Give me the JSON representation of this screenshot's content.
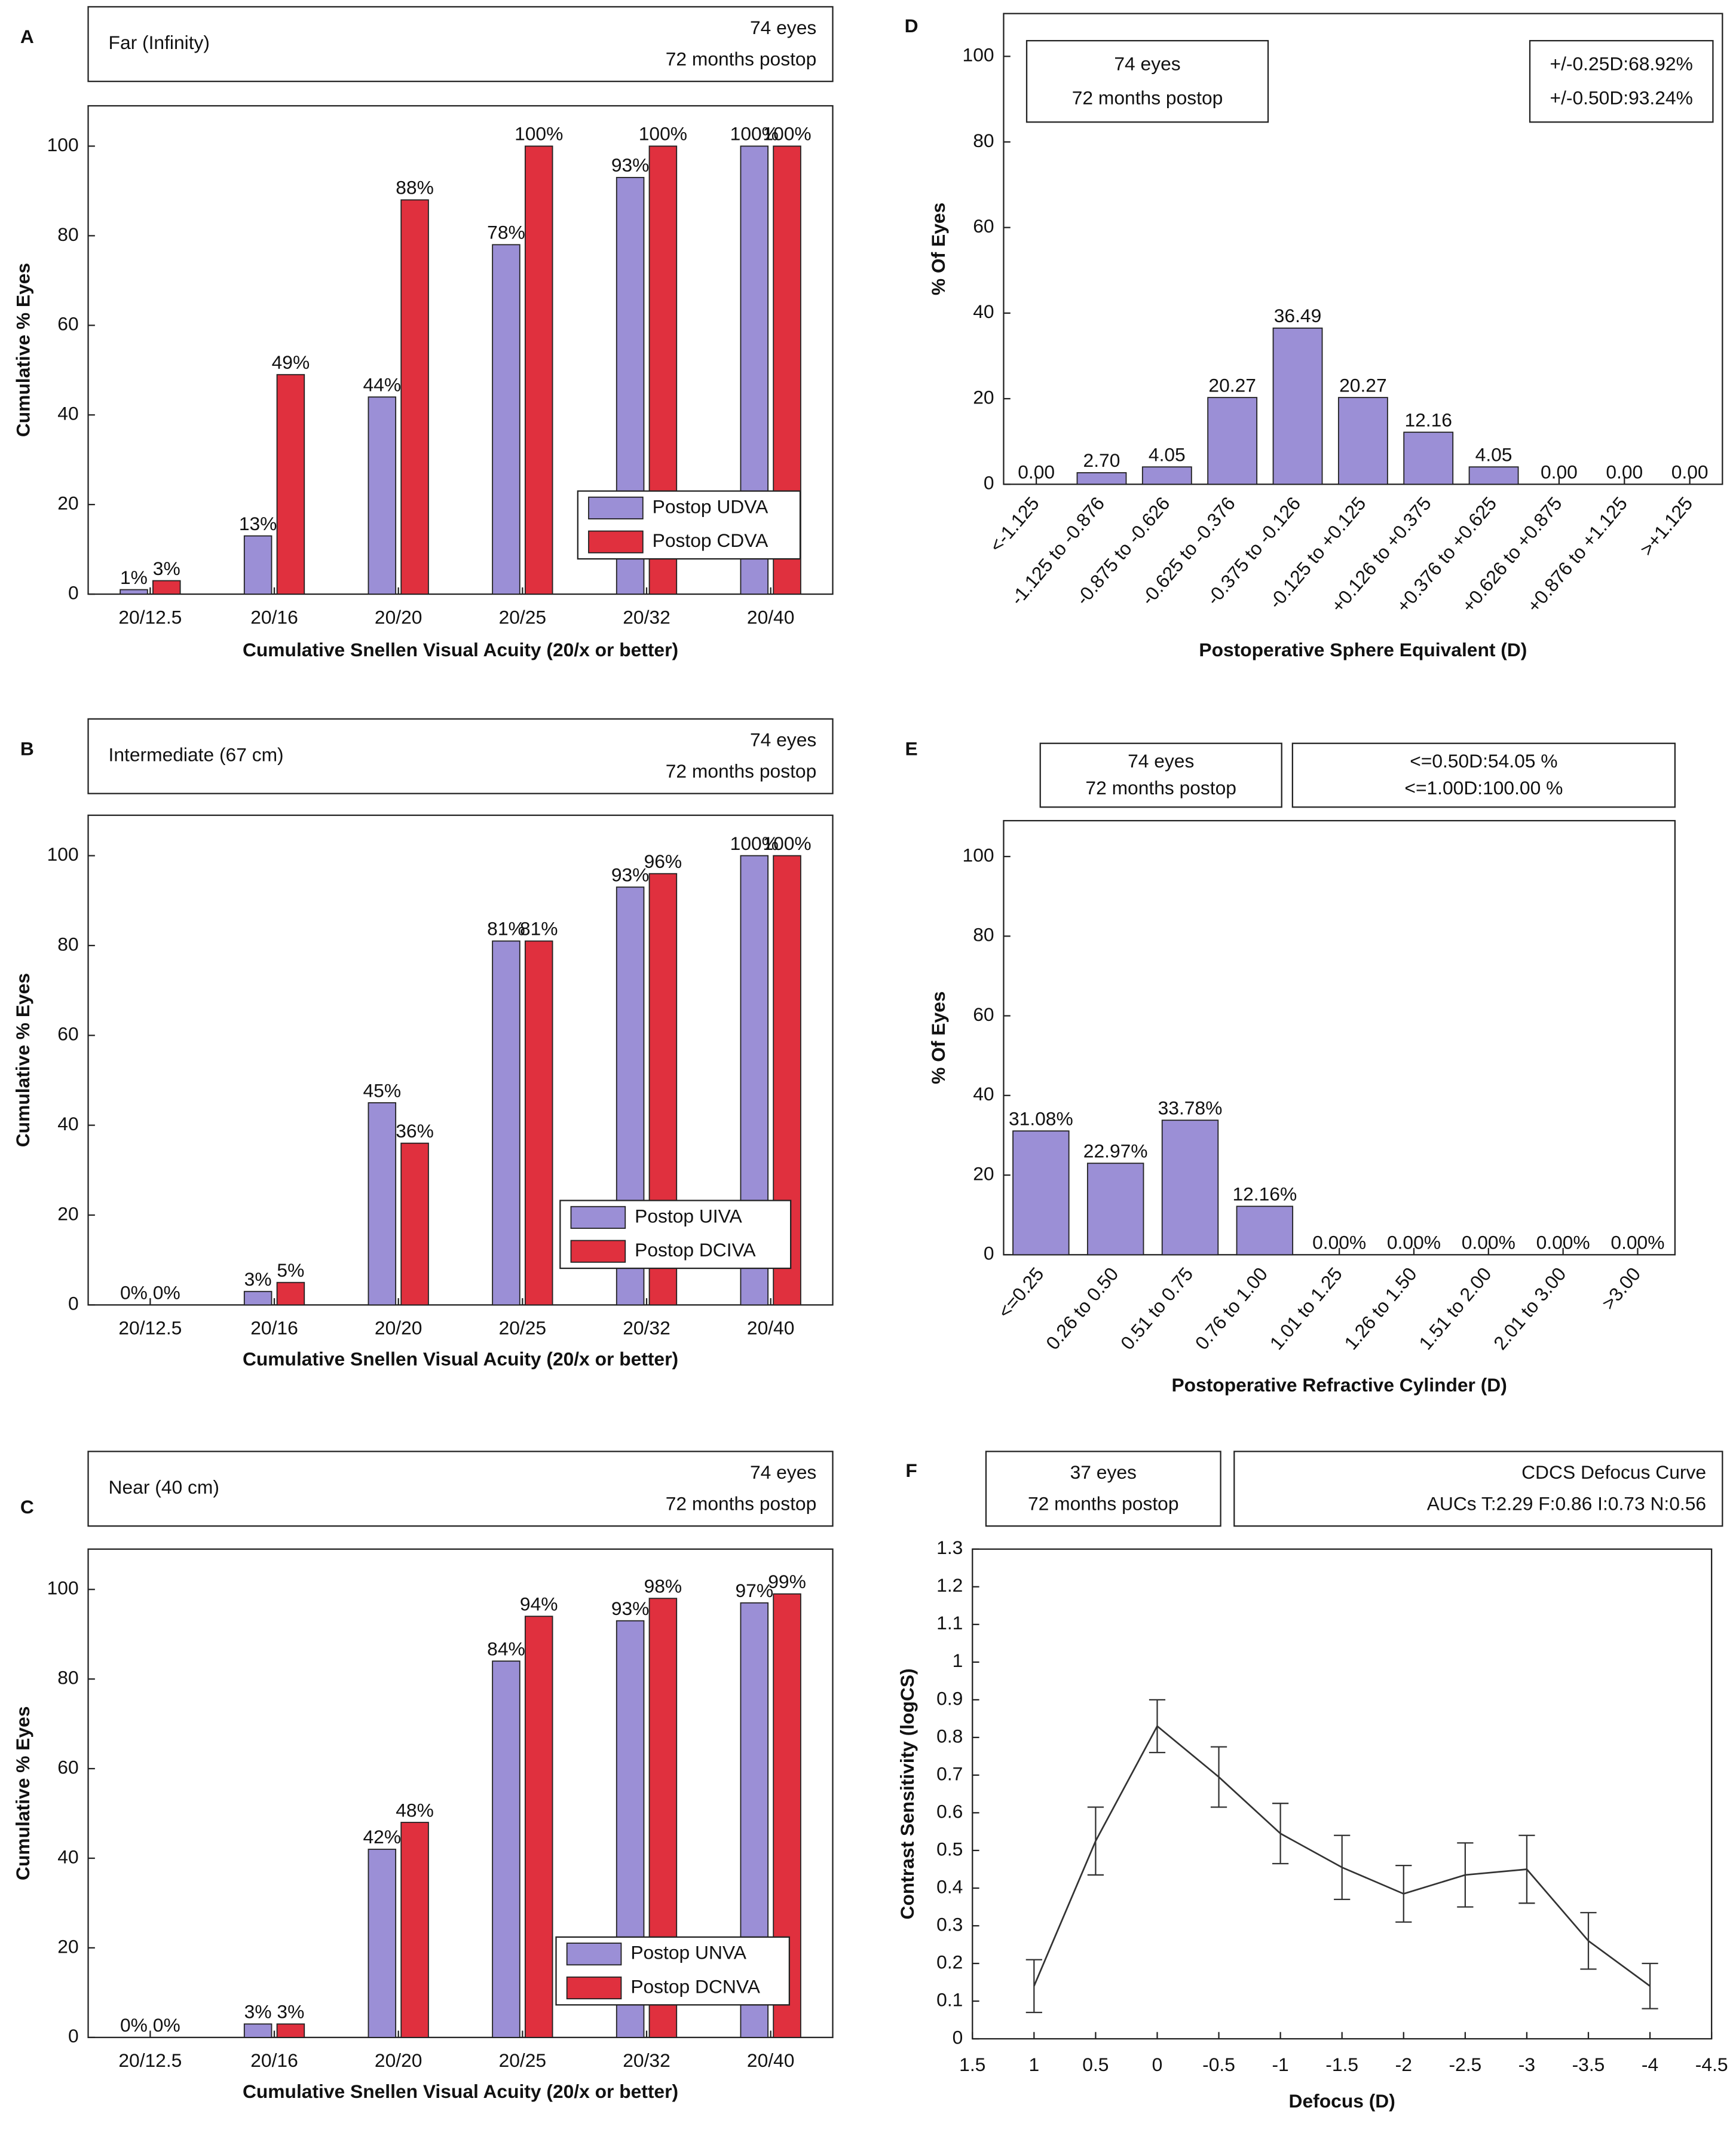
{
  "chart_data": [
    {
      "type": "bar",
      "panel": "A",
      "boxes": [
        {
          "note": "Far (Infinity)",
          "lines": [
            "74 eyes",
            "72 months postop"
          ]
        }
      ],
      "categories": [
        "20/12.5",
        "20/16",
        "20/20",
        "20/25",
        "20/32",
        "20/40"
      ],
      "series": [
        {
          "name": "Postop UDVA",
          "color": "#9b8fd6",
          "values": [
            1,
            13,
            44,
            78,
            93,
            100
          ],
          "value_labels": [
            "1%",
            "13%",
            "44%",
            "78%",
            "93%",
            "100%"
          ]
        },
        {
          "name": "Postop CDVA",
          "color": "#e0303e",
          "values": [
            3,
            49,
            88,
            100,
            100,
            100
          ],
          "value_labels": [
            "3%",
            "49%",
            "88%",
            "100%",
            "100%",
            "100%"
          ]
        }
      ],
      "ylim": [
        0,
        109
      ],
      "yticks": [
        0,
        20,
        40,
        60,
        80,
        100
      ],
      "x_label": "Cumulative Snellen Visual Acuity (20/x or better)",
      "y_label": "Cumulative % Eyes",
      "legend": "lower right"
    },
    {
      "type": "bar",
      "panel": "B",
      "boxes": [
        {
          "note": "Intermediate (67 cm)",
          "lines": [
            "74 eyes",
            "72 months postop"
          ]
        }
      ],
      "categories": [
        "20/12.5",
        "20/16",
        "20/20",
        "20/25",
        "20/32",
        "20/40"
      ],
      "series": [
        {
          "name": "Postop UIVA",
          "color": "#9b8fd6",
          "values": [
            0,
            3,
            45,
            81,
            93,
            100
          ],
          "value_labels": [
            "0%",
            "3%",
            "45%",
            "81%",
            "93%",
            "100%"
          ]
        },
        {
          "name": "Postop DCIVA",
          "color": "#e0303e",
          "values": [
            0,
            5,
            36,
            81,
            96,
            100
          ],
          "value_labels": [
            "0%",
            "5%",
            "36%",
            "81%",
            "96%",
            "100%"
          ]
        }
      ],
      "ylim": [
        0,
        109
      ],
      "yticks": [
        0,
        20,
        40,
        60,
        80,
        100
      ],
      "x_label": "Cumulative Snellen Visual Acuity (20/x or better)",
      "y_label": "Cumulative % Eyes",
      "legend": "lower right"
    },
    {
      "type": "bar",
      "panel": "C",
      "boxes": [
        {
          "note": "Near (40 cm)",
          "lines": [
            "74 eyes",
            "72 months postop"
          ]
        }
      ],
      "categories": [
        "20/12.5",
        "20/16",
        "20/20",
        "20/25",
        "20/32",
        "20/40"
      ],
      "series": [
        {
          "name": "Postop UNVA",
          "color": "#9b8fd6",
          "values": [
            0,
            3,
            42,
            84,
            93,
            97
          ],
          "value_labels": [
            "0%",
            "3%",
            "42%",
            "84%",
            "93%",
            "97%"
          ]
        },
        {
          "name": "Postop DCNVA",
          "color": "#e0303e",
          "values": [
            0,
            3,
            48,
            94,
            98,
            99
          ],
          "value_labels": [
            "0%",
            "3%",
            "48%",
            "94%",
            "98%",
            "99%"
          ]
        }
      ],
      "ylim": [
        0,
        109
      ],
      "yticks": [
        0,
        20,
        40,
        60,
        80,
        100
      ],
      "x_label": "Cumulative Snellen Visual Acuity (20/x or better)",
      "y_label": "Cumulative % Eyes",
      "legend": "lower right"
    },
    {
      "type": "bar",
      "panel": "D",
      "boxes": [
        {
          "lines": [
            "74 eyes",
            "72 months postop"
          ]
        },
        {
          "lines": [
            "+/-0.25D:68.92%",
            "+/-0.50D:93.24%"
          ]
        }
      ],
      "categories": [
        "<-1.125",
        "-1.125 to -0.876",
        "-0.875 to -0.626",
        "-0.625 to -0.376",
        "-0.375 to -0.126",
        "-0.125 to +0.125",
        "+0.126 to +0.375",
        "+0.376 to +0.625",
        "+0.626 to +0.875",
        "+0.876 to +1.125",
        ">+1.125"
      ],
      "series": [
        {
          "color": "#9b8fd6",
          "values": [
            0,
            2.7,
            4.05,
            20.27,
            36.49,
            20.27,
            12.16,
            4.05,
            0,
            0,
            0
          ],
          "value_labels": [
            "0.00",
            "2.70",
            "4.05",
            "20.27",
            "36.49",
            "20.27",
            "12.16",
            "4.05",
            "0.00",
            "0.00",
            "0.00"
          ]
        }
      ],
      "ylim": [
        0,
        110
      ],
      "yticks": [
        0,
        20,
        40,
        60,
        80,
        100
      ],
      "x_label": "Postoperative Sphere Equivalent (D)",
      "y_label": "% Of Eyes"
    },
    {
      "type": "bar",
      "panel": "E",
      "boxes": [
        {
          "lines": [
            "74 eyes",
            "72 months postop"
          ]
        },
        {
          "lines": [
            "<=0.50D:54.05 %",
            "<=1.00D:100.00 %"
          ]
        }
      ],
      "categories": [
        "<=0.25",
        "0.26 to 0.50",
        "0.51 to 0.75",
        "0.76 to 1.00",
        "1.01 to 1.25",
        "1.26 to 1.50",
        "1.51 to 2.00",
        "2.01 to 3.00",
        ">3.00"
      ],
      "series": [
        {
          "color": "#9b8fd6",
          "values": [
            31.08,
            22.97,
            33.78,
            12.16,
            0,
            0,
            0,
            0,
            0
          ],
          "value_labels": [
            "31.08%",
            "22.97%",
            "33.78%",
            "12.16%",
            "0.00%",
            "0.00%",
            "0.00%",
            "0.00%",
            "0.00%"
          ]
        }
      ],
      "ylim": [
        0,
        109
      ],
      "yticks": [
        0,
        20,
        40,
        60,
        80,
        100
      ],
      "x_label": "Postoperative Refractive Cylinder (D)",
      "y_label": "% Of Eyes"
    },
    {
      "type": "line",
      "panel": "F",
      "boxes": [
        {
          "lines": [
            "37 eyes",
            "72 months postop"
          ]
        },
        {
          "lines": [
            "CDCS Defocus Curve",
            "AUCs T:2.29 F:0.86 I:0.73 N:0.56"
          ]
        }
      ],
      "x": [
        1,
        0.5,
        0,
        -0.5,
        -1,
        -1.5,
        -2,
        -2.5,
        -3,
        -3.5,
        -4
      ],
      "values": [
        0.14,
        0.525,
        0.83,
        0.695,
        0.545,
        0.455,
        0.385,
        0.435,
        0.45,
        0.26,
        0.14
      ],
      "errors": [
        0.07,
        0.09,
        0.07,
        0.08,
        0.08,
        0.085,
        0.075,
        0.085,
        0.09,
        0.075,
        0.06
      ],
      "color": "#333333",
      "xlim": [
        1.5,
        -4.5
      ],
      "xticks": [
        1.5,
        1,
        0.5,
        0,
        -0.5,
        -1,
        -1.5,
        -2,
        -2.5,
        -3,
        -3.5,
        -4,
        -4.5
      ],
      "ylim": [
        0,
        1.3
      ],
      "yticks": [
        0,
        0.1,
        0.2,
        0.3,
        0.4,
        0.5,
        0.6,
        0.7,
        0.8,
        0.9,
        1,
        1.1,
        1.2,
        1.3
      ],
      "x_label": "Defocus (D)",
      "y_label": "Contrast Sensitivity (logCS)"
    }
  ]
}
